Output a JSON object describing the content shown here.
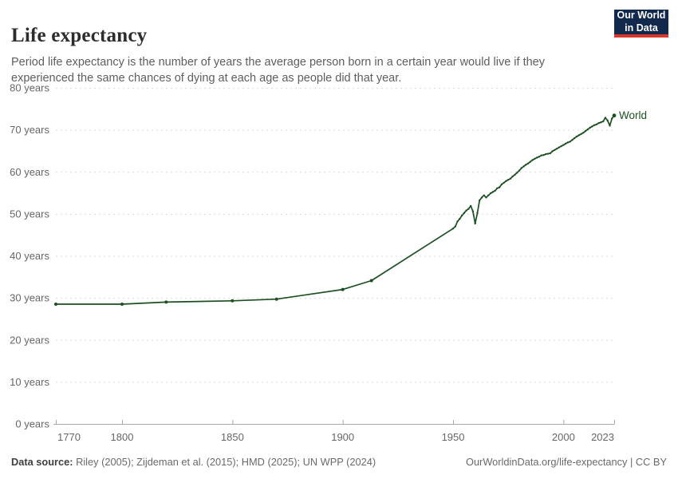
{
  "header": {
    "title": "Life expectancy",
    "subtitle": "Period life expectancy is the number of years the average person born in a certain year would live if they experienced the same chances of dying at each age as people did that year.",
    "logo": {
      "line1": "Our World",
      "line2": "in Data",
      "bg_color": "#12284c",
      "accent_color": "#d7382e",
      "text_color": "#ffffff"
    }
  },
  "chart_data": {
    "type": "line",
    "title": "Life expectancy",
    "xlabel": "",
    "ylabel": "",
    "xlim": [
      1770,
      2023
    ],
    "ylim": [
      0,
      80
    ],
    "x_ticks": [
      1770,
      1800,
      1850,
      1900,
      1950,
      2000,
      2023
    ],
    "y_ticks": [
      0,
      10,
      20,
      30,
      40,
      50,
      60,
      70,
      80
    ],
    "y_tick_suffix": " years",
    "grid": "horizontal-dashed",
    "legend_position": "end-of-line",
    "colors": {
      "grid": "#dadada",
      "axis": "#a8a8a8",
      "tick_label": "#666666"
    },
    "series": [
      {
        "name": "World",
        "color": "#1d4f22",
        "marker_points": [
          [
            1770,
            28.5
          ],
          [
            1800,
            28.5
          ],
          [
            1820,
            29.0
          ],
          [
            1850,
            29.3
          ],
          [
            1870,
            29.7
          ],
          [
            1900,
            32.0
          ],
          [
            1913,
            34.1
          ]
        ],
        "points": [
          [
            1770,
            28.5
          ],
          [
            1800,
            28.5
          ],
          [
            1820,
            29.0
          ],
          [
            1850,
            29.3
          ],
          [
            1870,
            29.7
          ],
          [
            1900,
            32.0
          ],
          [
            1913,
            34.1
          ],
          [
            1950,
            46.5
          ],
          [
            1951,
            47.0
          ],
          [
            1952,
            48.2
          ],
          [
            1953,
            48.8
          ],
          [
            1954,
            49.6
          ],
          [
            1955,
            50.2
          ],
          [
            1956,
            50.8
          ],
          [
            1957,
            51.2
          ],
          [
            1958,
            51.9
          ],
          [
            1959,
            50.6
          ],
          [
            1960,
            47.7
          ],
          [
            1961,
            50.2
          ],
          [
            1962,
            53.2
          ],
          [
            1963,
            53.9
          ],
          [
            1964,
            54.4
          ],
          [
            1965,
            53.9
          ],
          [
            1966,
            54.4
          ],
          [
            1967,
            54.9
          ],
          [
            1968,
            55.2
          ],
          [
            1969,
            55.5
          ],
          [
            1970,
            56.1
          ],
          [
            1971,
            56.3
          ],
          [
            1972,
            57.0
          ],
          [
            1973,
            57.4
          ],
          [
            1974,
            57.8
          ],
          [
            1975,
            58.1
          ],
          [
            1976,
            58.4
          ],
          [
            1977,
            58.9
          ],
          [
            1978,
            59.3
          ],
          [
            1979,
            59.8
          ],
          [
            1980,
            60.3
          ],
          [
            1981,
            60.9
          ],
          [
            1982,
            61.3
          ],
          [
            1983,
            61.7
          ],
          [
            1984,
            62.0
          ],
          [
            1985,
            62.4
          ],
          [
            1986,
            62.8
          ],
          [
            1987,
            63.1
          ],
          [
            1988,
            63.4
          ],
          [
            1989,
            63.6
          ],
          [
            1990,
            63.9
          ],
          [
            1991,
            64.0
          ],
          [
            1992,
            64.2
          ],
          [
            1993,
            64.3
          ],
          [
            1994,
            64.4
          ],
          [
            1995,
            64.9
          ],
          [
            1996,
            65.2
          ],
          [
            1997,
            65.5
          ],
          [
            1998,
            65.8
          ],
          [
            1999,
            66.1
          ],
          [
            2000,
            66.4
          ],
          [
            2001,
            66.7
          ],
          [
            2002,
            67.0
          ],
          [
            2003,
            67.2
          ],
          [
            2004,
            67.6
          ],
          [
            2005,
            68.0
          ],
          [
            2006,
            68.4
          ],
          [
            2007,
            68.7
          ],
          [
            2008,
            69.0
          ],
          [
            2009,
            69.3
          ],
          [
            2010,
            69.7
          ],
          [
            2011,
            70.1
          ],
          [
            2012,
            70.5
          ],
          [
            2013,
            70.8
          ],
          [
            2014,
            71.1
          ],
          [
            2015,
            71.3
          ],
          [
            2016,
            71.6
          ],
          [
            2017,
            71.8
          ],
          [
            2018,
            72.0
          ],
          [
            2019,
            72.9
          ],
          [
            2020,
            72.2
          ],
          [
            2021,
            71.0
          ],
          [
            2022,
            72.7
          ],
          [
            2023,
            73.4
          ]
        ]
      }
    ]
  },
  "footer": {
    "source_label": "Data source:",
    "source_text": " Riley (2005); Zijdeman et al. (2015); HMD (2025); UN WPP (2024)",
    "link_text": "OurWorldinData.org/life-expectancy | CC BY"
  }
}
